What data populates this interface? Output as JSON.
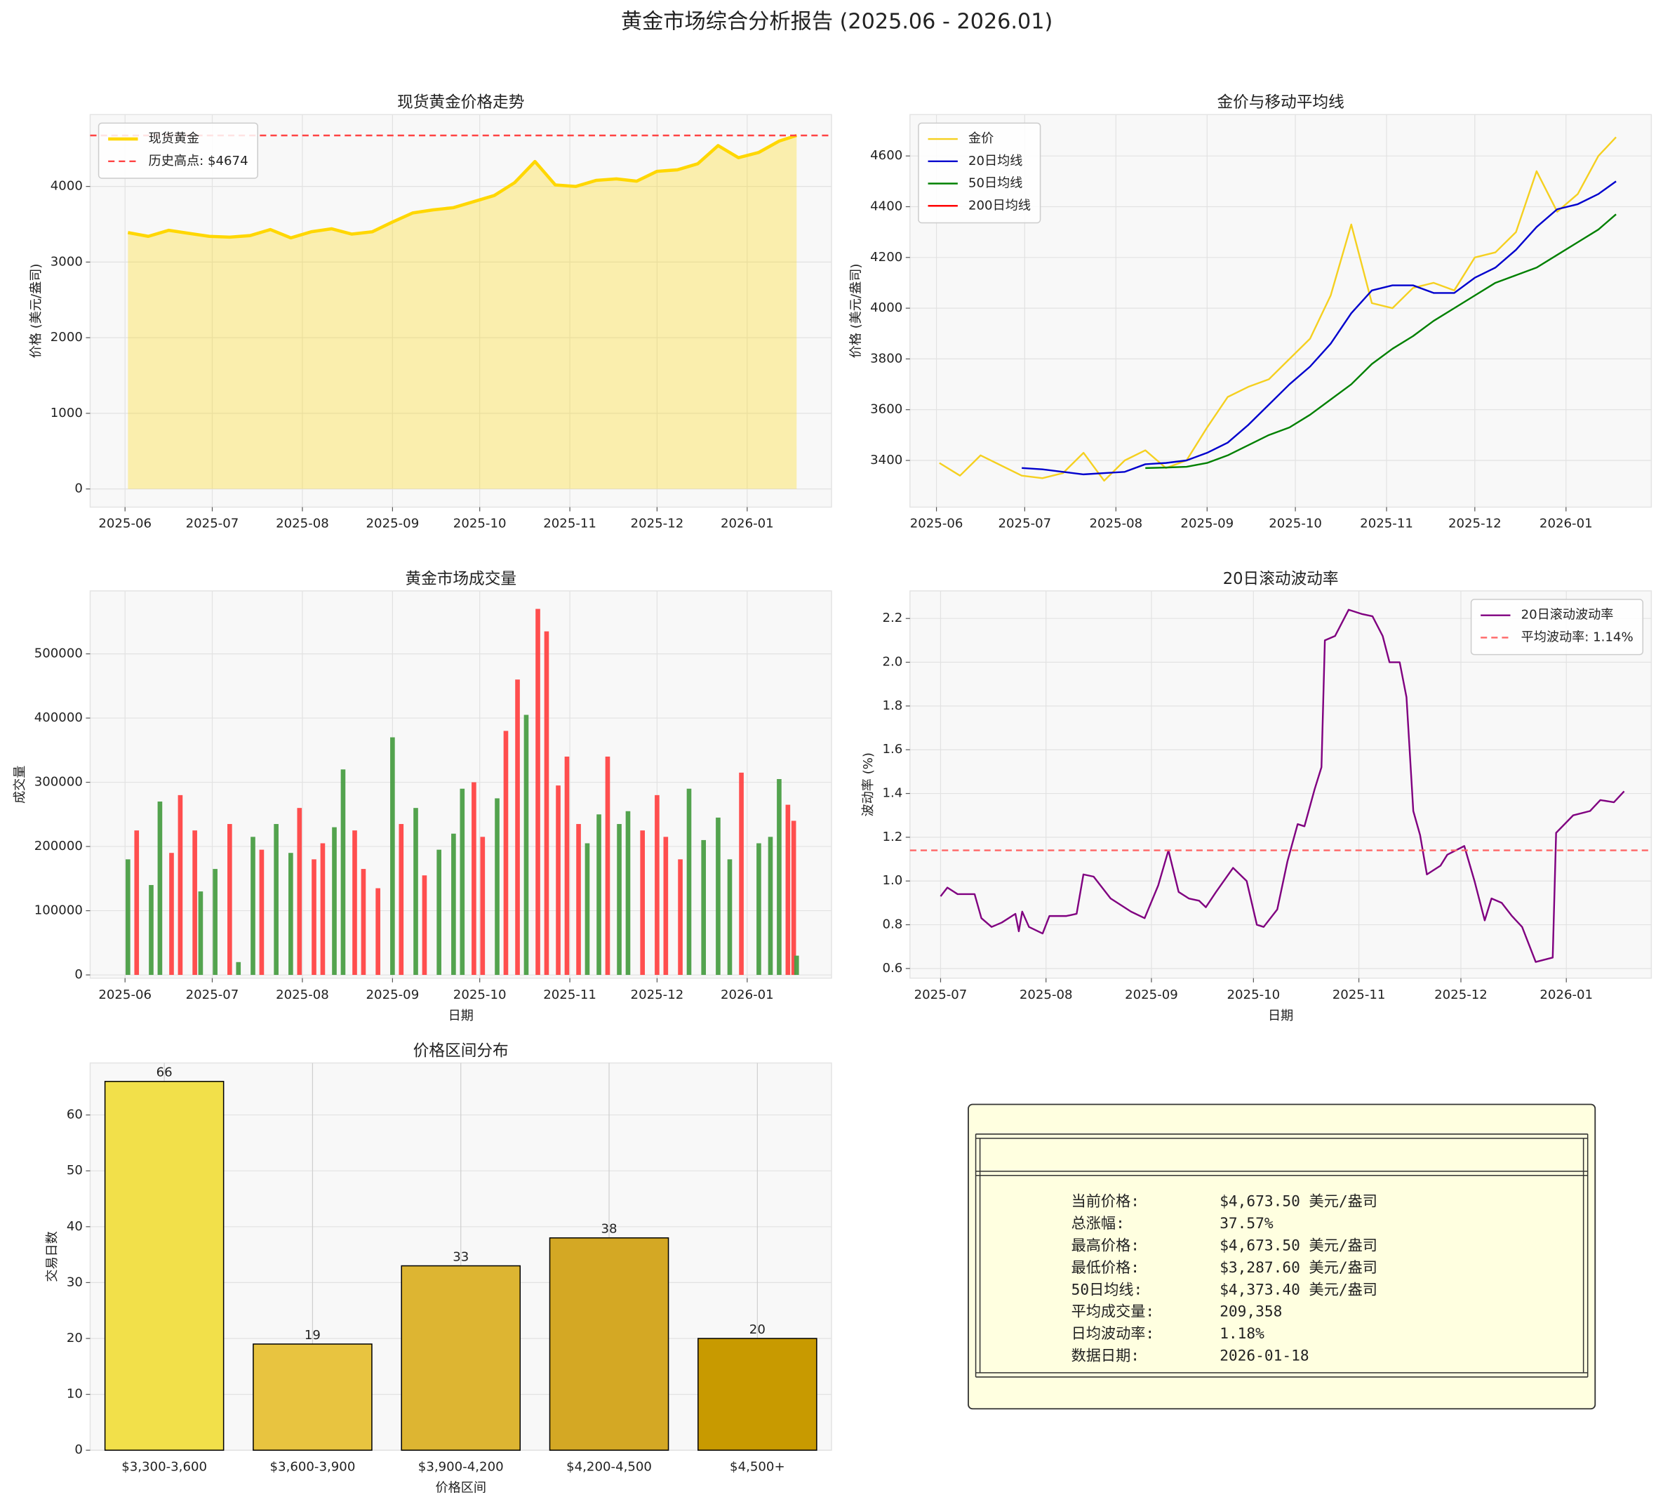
{
  "title": "黄金市场综合分析报告 (2025.06 - 2026.01)",
  "chart_data": [
    {
      "type": "area",
      "title": "现货黄金价格走势",
      "ylabel": "价格 (美元/盎司)",
      "x": [
        "2025-06-02",
        "2025-06-09",
        "2025-06-16",
        "2025-06-23",
        "2025-06-30",
        "2025-07-07",
        "2025-07-14",
        "2025-07-21",
        "2025-07-28",
        "2025-08-04",
        "2025-08-11",
        "2025-08-18",
        "2025-08-25",
        "2025-09-01",
        "2025-09-08",
        "2025-09-15",
        "2025-09-22",
        "2025-09-29",
        "2025-10-06",
        "2025-10-13",
        "2025-10-20",
        "2025-10-27",
        "2025-11-03",
        "2025-11-10",
        "2025-11-17",
        "2025-11-24",
        "2025-12-01",
        "2025-12-08",
        "2025-12-15",
        "2025-12-22",
        "2025-12-29",
        "2026-01-05",
        "2026-01-12",
        "2026-01-18"
      ],
      "series": [
        {
          "name": "现货黄金",
          "color": "#ffd700",
          "values": [
            3390,
            3340,
            3420,
            3380,
            3340,
            3330,
            3350,
            3430,
            3320,
            3400,
            3440,
            3370,
            3400,
            3530,
            3650,
            3690,
            3720,
            3800,
            3880,
            4050,
            4330,
            4020,
            4000,
            4080,
            4100,
            4070,
            4200,
            4220,
            4300,
            4540,
            4380,
            4450,
            4600,
            4674
          ]
        }
      ],
      "hlines": [
        {
          "value": 4674,
          "label": "历史高点: $4674",
          "color": "#ff4444"
        }
      ],
      "xlim": [
        "2025-05-20",
        "2026-01-30"
      ],
      "xticks": [
        {
          "value": "2025-06-01",
          "label": "2025-06"
        },
        {
          "value": "2025-07-01",
          "label": "2025-07"
        },
        {
          "value": "2025-08-01",
          "label": "2025-08"
        },
        {
          "value": "2025-09-01",
          "label": "2025-09"
        },
        {
          "value": "2025-10-01",
          "label": "2025-10"
        },
        {
          "value": "2025-11-01",
          "label": "2025-11"
        },
        {
          "value": "2025-12-01",
          "label": "2025-12"
        },
        {
          "value": "2026-01-01",
          "label": "2026-01"
        }
      ],
      "ylim": [
        -240,
        4950
      ],
      "yticks": [
        0,
        1000,
        2000,
        3000,
        4000
      ],
      "grid": true,
      "legend": "upper left"
    },
    {
      "type": "line",
      "title": "金价与移动平均线",
      "ylabel": "价格 (美元/盎司)",
      "x": [
        "2025-06-02",
        "2025-06-09",
        "2025-06-16",
        "2025-06-23",
        "2025-06-30",
        "2025-07-07",
        "2025-07-14",
        "2025-07-21",
        "2025-07-28",
        "2025-08-04",
        "2025-08-11",
        "2025-08-18",
        "2025-08-25",
        "2025-09-01",
        "2025-09-08",
        "2025-09-15",
        "2025-09-22",
        "2025-09-29",
        "2025-10-06",
        "2025-10-13",
        "2025-10-20",
        "2025-10-27",
        "2025-11-03",
        "2025-11-10",
        "2025-11-17",
        "2025-11-24",
        "2025-12-01",
        "2025-12-08",
        "2025-12-15",
        "2025-12-22",
        "2025-12-29",
        "2026-01-05",
        "2026-01-12",
        "2026-01-18"
      ],
      "series": [
        {
          "name": "金价",
          "color": "#f5d020",
          "values": [
            3390,
            3340,
            3420,
            3380,
            3340,
            3330,
            3350,
            3430,
            3320,
            3400,
            3440,
            3370,
            3400,
            3530,
            3650,
            3690,
            3720,
            3800,
            3880,
            4050,
            4330,
            4020,
            4000,
            4080,
            4100,
            4070,
            4200,
            4220,
            4300,
            4540,
            4380,
            4450,
            4600,
            4674
          ]
        },
        {
          "name": "20日均线",
          "color": "#0000cd",
          "values": [
            null,
            null,
            null,
            null,
            3370,
            3365,
            3355,
            3345,
            3350,
            3355,
            3385,
            3390,
            3400,
            3430,
            3470,
            3540,
            3620,
            3700,
            3770,
            3860,
            3980,
            4070,
            4090,
            4090,
            4060,
            4060,
            4120,
            4160,
            4230,
            4320,
            4390,
            4410,
            4450,
            4500
          ]
        },
        {
          "name": "50日均线",
          "color": "#008000",
          "values": [
            null,
            null,
            null,
            null,
            null,
            null,
            null,
            null,
            null,
            null,
            3370,
            3372,
            3375,
            3390,
            3420,
            3460,
            3500,
            3530,
            3580,
            3640,
            3700,
            3780,
            3840,
            3890,
            3950,
            4000,
            4050,
            4100,
            4130,
            4160,
            4210,
            4260,
            4310,
            4370
          ]
        },
        {
          "name": "200日均线",
          "color": "#ff0000",
          "values": [
            null,
            null,
            null,
            null,
            null,
            null,
            null,
            null,
            null,
            null,
            null,
            null,
            null,
            null,
            null,
            null,
            null,
            null,
            null,
            null,
            null,
            null,
            null,
            null,
            null,
            null,
            null,
            null,
            null,
            null,
            null,
            null,
            null,
            null
          ]
        }
      ],
      "xlim": [
        "2025-05-23",
        "2026-01-30"
      ],
      "xticks": [
        {
          "value": "2025-06-01",
          "label": "2025-06"
        },
        {
          "value": "2025-07-01",
          "label": "2025-07"
        },
        {
          "value": "2025-08-01",
          "label": "2025-08"
        },
        {
          "value": "2025-09-01",
          "label": "2025-09"
        },
        {
          "value": "2025-10-01",
          "label": "2025-10"
        },
        {
          "value": "2025-11-01",
          "label": "2025-11"
        },
        {
          "value": "2025-12-01",
          "label": "2025-12"
        },
        {
          "value": "2026-01-01",
          "label": "2026-01"
        }
      ],
      "ylim": [
        3216,
        4763
      ],
      "yticks": [
        3400,
        3600,
        3800,
        4000,
        4200,
        4400,
        4600
      ],
      "grid": true,
      "legend": "upper left"
    },
    {
      "type": "bar",
      "title": "黄金市场成交量",
      "ylabel": "成交量",
      "xlabel": "日期",
      "x": [
        "2025-06-02",
        "2025-06-05",
        "2025-06-10",
        "2025-06-13",
        "2025-06-17",
        "2025-06-20",
        "2025-06-25",
        "2025-06-27",
        "2025-07-02",
        "2025-07-07",
        "2025-07-10",
        "2025-07-15",
        "2025-07-18",
        "2025-07-23",
        "2025-07-28",
        "2025-07-31",
        "2025-08-05",
        "2025-08-08",
        "2025-08-12",
        "2025-08-15",
        "2025-08-19",
        "2025-08-22",
        "2025-08-27",
        "2025-09-01",
        "2025-09-04",
        "2025-09-09",
        "2025-09-12",
        "2025-09-17",
        "2025-09-22",
        "2025-09-25",
        "2025-09-29",
        "2025-10-02",
        "2025-10-07",
        "2025-10-10",
        "2025-10-14",
        "2025-10-17",
        "2025-10-21",
        "2025-10-24",
        "2025-10-28",
        "2025-10-31",
        "2025-11-04",
        "2025-11-07",
        "2025-11-11",
        "2025-11-14",
        "2025-11-18",
        "2025-11-21",
        "2025-11-26",
        "2025-12-01",
        "2025-12-04",
        "2025-12-09",
        "2025-12-12",
        "2025-12-17",
        "2025-12-22",
        "2025-12-26",
        "2025-12-30",
        "2026-01-05",
        "2026-01-09",
        "2026-01-12",
        "2026-01-15",
        "2026-01-17",
        "2026-01-18"
      ],
      "values": [
        180000,
        225000,
        140000,
        270000,
        190000,
        280000,
        225000,
        130000,
        165000,
        235000,
        20000,
        215000,
        195000,
        235000,
        190000,
        260000,
        180000,
        205000,
        230000,
        320000,
        225000,
        165000,
        135000,
        370000,
        235000,
        260000,
        155000,
        195000,
        220000,
        290000,
        300000,
        215000,
        275000,
        380000,
        460000,
        405000,
        570000,
        535000,
        295000,
        340000,
        235000,
        205000,
        250000,
        340000,
        235000,
        255000,
        225000,
        280000,
        215000,
        180000,
        290000,
        210000,
        245000,
        180000,
        315000,
        205000,
        215000,
        305000,
        265000,
        240000,
        30000
      ],
      "colors": [
        "#4a9e45",
        "#ff4444",
        "#4a9e45",
        "#4a9e45",
        "#ff4444",
        "#ff4444",
        "#ff4444",
        "#4a9e45",
        "#4a9e45",
        "#ff4444",
        "#4a9e45",
        "#4a9e45",
        "#ff4444",
        "#4a9e45",
        "#4a9e45",
        "#ff4444",
        "#ff4444",
        "#ff4444",
        "#4a9e45",
        "#4a9e45",
        "#ff4444",
        "#ff4444",
        "#ff4444",
        "#4a9e45",
        "#ff4444",
        "#4a9e45",
        "#ff4444",
        "#4a9e45",
        "#4a9e45",
        "#4a9e45",
        "#ff4444",
        "#ff4444",
        "#4a9e45",
        "#ff4444",
        "#ff4444",
        "#4a9e45",
        "#ff4444",
        "#ff4444",
        "#ff4444",
        "#ff4444",
        "#ff4444",
        "#4a9e45",
        "#4a9e45",
        "#ff4444",
        "#4a9e45",
        "#4a9e45",
        "#ff4444",
        "#ff4444",
        "#ff4444",
        "#ff4444",
        "#4a9e45",
        "#4a9e45",
        "#4a9e45",
        "#4a9e45",
        "#ff4444",
        "#4a9e45",
        "#4a9e45",
        "#4a9e45",
        "#ff4444",
        "#ff4444",
        "#4a9e45"
      ],
      "xlim": [
        "2025-05-20",
        "2026-01-30"
      ],
      "xticks": [
        {
          "value": "2025-06-01",
          "label": "2025-06"
        },
        {
          "value": "2025-07-01",
          "label": "2025-07"
        },
        {
          "value": "2025-08-01",
          "label": "2025-08"
        },
        {
          "value": "2025-09-01",
          "label": "2025-09"
        },
        {
          "value": "2025-10-01",
          "label": "2025-10"
        },
        {
          "value": "2025-11-01",
          "label": "2025-11"
        },
        {
          "value": "2025-12-01",
          "label": "2025-12"
        },
        {
          "value": "2026-01-01",
          "label": "2026-01"
        }
      ],
      "ylim": [
        -5000,
        598000
      ],
      "yticks": [
        0,
        100000,
        200000,
        300000,
        400000,
        500000
      ],
      "grid": true
    },
    {
      "type": "line",
      "title": "20日滚动波动率",
      "ylabel": "波动率 (%)",
      "xlabel": "日期",
      "x": [
        "2025-07-01",
        "2025-07-03",
        "2025-07-06",
        "2025-07-11",
        "2025-07-13",
        "2025-07-16",
        "2025-07-19",
        "2025-07-23",
        "2025-07-24",
        "2025-07-25",
        "2025-07-27",
        "2025-07-31",
        "2025-08-02",
        "2025-08-07",
        "2025-08-10",
        "2025-08-12",
        "2025-08-15",
        "2025-08-20",
        "2025-08-26",
        "2025-08-30",
        "2025-09-03",
        "2025-09-06",
        "2025-09-09",
        "2025-09-12",
        "2025-09-15",
        "2025-09-17",
        "2025-09-20",
        "2025-09-25",
        "2025-09-29",
        "2025-10-02",
        "2025-10-04",
        "2025-10-08",
        "2025-10-11",
        "2025-10-14",
        "2025-10-16",
        "2025-10-19",
        "2025-10-21",
        "2025-10-22",
        "2025-10-25",
        "2025-10-29",
        "2025-11-02",
        "2025-11-05",
        "2025-11-08",
        "2025-11-10",
        "2025-11-13",
        "2025-11-15",
        "2025-11-17",
        "2025-11-19",
        "2025-11-21",
        "2025-11-25",
        "2025-11-27",
        "2025-12-02",
        "2025-12-05",
        "2025-12-08",
        "2025-12-10",
        "2025-12-13",
        "2025-12-16",
        "2025-12-19",
        "2025-12-23",
        "2025-12-28",
        "2025-12-29",
        "2026-01-03",
        "2026-01-08",
        "2026-01-11",
        "2026-01-15",
        "2026-01-18"
      ],
      "series": [
        {
          "name": "20日滚动波动率",
          "color": "#800080",
          "values": [
            0.93,
            0.97,
            0.94,
            0.94,
            0.83,
            0.79,
            0.81,
            0.85,
            0.77,
            0.86,
            0.79,
            0.76,
            0.84,
            0.84,
            0.85,
            1.03,
            1.02,
            0.92,
            0.86,
            0.83,
            0.98,
            1.14,
            0.95,
            0.92,
            0.91,
            0.88,
            0.95,
            1.06,
            1.0,
            0.8,
            0.79,
            0.87,
            1.09,
            1.26,
            1.25,
            1.42,
            1.52,
            2.1,
            2.12,
            2.24,
            2.22,
            2.21,
            2.12,
            2.0,
            2.0,
            1.84,
            1.32,
            1.21,
            1.03,
            1.07,
            1.12,
            1.16,
            1.0,
            0.82,
            0.92,
            0.9,
            0.84,
            0.79,
            0.63,
            0.65,
            1.22,
            1.3,
            1.32,
            1.37,
            1.36,
            1.41
          ]
        }
      ],
      "hlines": [
        {
          "value": 1.14,
          "label": "平均波动率: 1.14%",
          "color": "#ff6666"
        }
      ],
      "xlim": [
        "2025-06-22",
        "2026-01-26"
      ],
      "xticks": [
        {
          "value": "2025-07-01",
          "label": "2025-07"
        },
        {
          "value": "2025-08-01",
          "label": "2025-08"
        },
        {
          "value": "2025-09-01",
          "label": "2025-09"
        },
        {
          "value": "2025-10-01",
          "label": "2025-10"
        },
        {
          "value": "2025-11-01",
          "label": "2025-11"
        },
        {
          "value": "2025-12-01",
          "label": "2025-12"
        },
        {
          "value": "2026-01-01",
          "label": "2026-01"
        }
      ],
      "ylim": [
        0.556,
        2.326
      ],
      "yticks": [
        0.6,
        0.8,
        {
          "value": 1,
          "label": "1.0"
        },
        1.2,
        1.4,
        1.6,
        1.8,
        {
          "value": 2,
          "label": "2.0"
        },
        2.2
      ],
      "grid": true,
      "legend": "upper right"
    },
    {
      "type": "bar",
      "title": "价格区间分布",
      "ylabel": "交易日数",
      "xlabel": "价格区间",
      "categories": [
        "$3,300-3,600",
        "$3,600-3,900",
        "$3,900-4,200",
        "$4,200-4,500",
        "$4,500+"
      ],
      "values": [
        66,
        19,
        33,
        38,
        20
      ],
      "colors": [
        "#f2e04a",
        "#e8c440",
        "#ddb532",
        "#d4a824",
        "#c89a00"
      ],
      "ylim": [
        0,
        69.3
      ],
      "yticks": [
        0,
        10,
        20,
        30,
        40,
        50,
        60
      ],
      "grid": true,
      "data_labels": true
    }
  ],
  "summary": {
    "rows": [
      {
        "label": "当前价格:",
        "value": "$4,673.50 美元/盎司"
      },
      {
        "label": "总涨幅:",
        "value": "37.57%"
      },
      {
        "label": "最高价格:",
        "value": "$4,673.50 美元/盎司"
      },
      {
        "label": "最低价格:",
        "value": "$3,287.60 美元/盎司"
      },
      {
        "label": "50日均线:",
        "value": "$4,373.40 美元/盎司"
      },
      {
        "label": "平均成交量:",
        "value": "209,358"
      },
      {
        "label": "日均波动率:",
        "value": "1.18%"
      },
      {
        "label": "数据日期:",
        "value": "2026-01-18"
      }
    ]
  }
}
